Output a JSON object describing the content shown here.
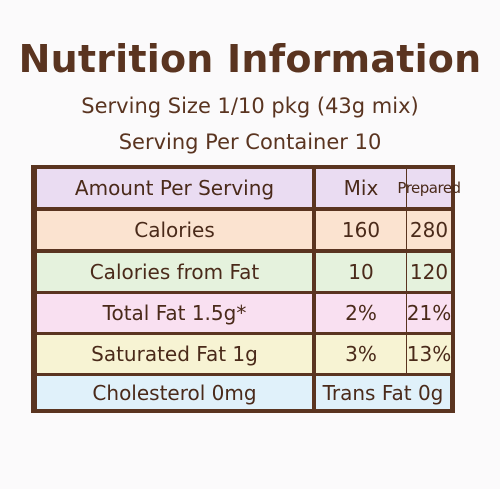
{
  "title": "Nutrition Information",
  "serving_size": "Serving Size 1/10 pkg (43g mix)",
  "servings_per_container": "Serving Per Container 10",
  "table": {
    "header": {
      "label": "Amount Per Serving",
      "mix": "Mix",
      "prepared": "Prepared"
    },
    "rows": [
      {
        "label": "Calories",
        "mix": "160",
        "prepared": "280",
        "color": "#fbe3d0"
      },
      {
        "label": "Calories from Fat",
        "mix": "10",
        "prepared": "120",
        "color": "#e5f2dd"
      },
      {
        "label": "Total Fat 1.5g*",
        "mix": "2%",
        "prepared": "21%",
        "color": "#f9e0f1"
      },
      {
        "label": "Saturated Fat 1g",
        "mix": "3%",
        "prepared": "13%",
        "color": "#f7f3d3"
      }
    ],
    "footer": {
      "label": "Cholesterol 0mg",
      "trans_fat": "Trans Fat 0g",
      "color": "#e0f1fa"
    },
    "header_color": "#eadcf2",
    "border_color": "#5a3420"
  }
}
